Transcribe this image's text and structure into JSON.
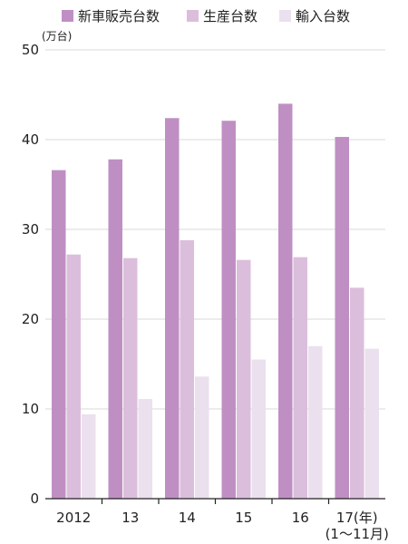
{
  "chart_data": {
    "type": "bar",
    "unit_label": "(万台)",
    "categories": [
      "2012",
      "13",
      "14",
      "15",
      "16",
      "17(年)"
    ],
    "category_sublabels": [
      "",
      "",
      "",
      "",
      "",
      "(1〜11月)"
    ],
    "series": [
      {
        "name": "新車販売台数",
        "color": "#bf8fc3",
        "values": [
          36.6,
          37.8,
          42.4,
          42.1,
          44.0,
          40.3
        ]
      },
      {
        "name": "生産台数",
        "color": "#dbbedc",
        "values": [
          27.2,
          26.8,
          28.8,
          26.6,
          26.9,
          23.5
        ]
      },
      {
        "name": "輸入台数",
        "color": "#ebe0ee",
        "values": [
          9.4,
          11.1,
          13.6,
          15.5,
          17.0,
          16.7
        ]
      }
    ],
    "ylim": [
      0,
      50
    ],
    "yticks": [
      0,
      10,
      20,
      30,
      40,
      50
    ],
    "grid": true,
    "legend": "top"
  }
}
